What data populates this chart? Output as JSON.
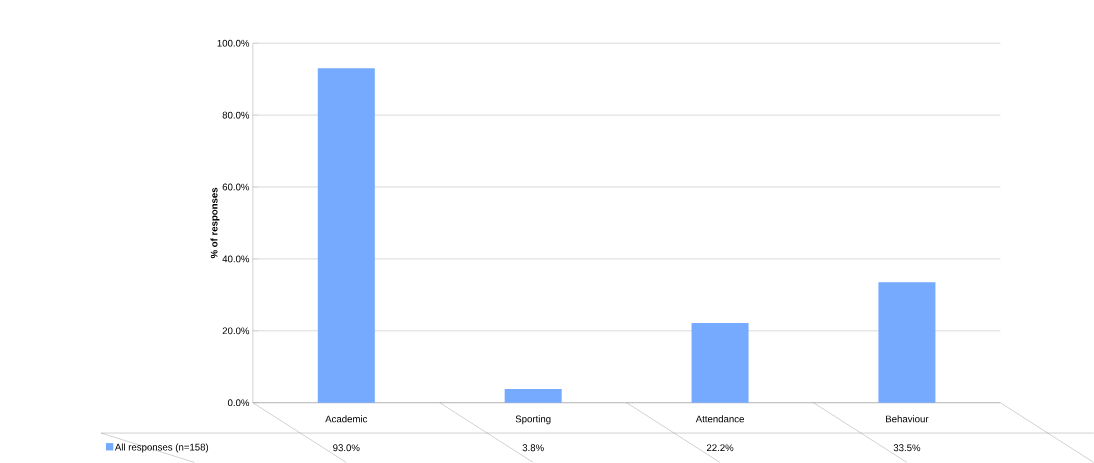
{
  "chart_data": {
    "type": "bar",
    "ylabel": "% of responses",
    "categories": [
      "Academic",
      "Sporting",
      "Attendance",
      "Behaviour"
    ],
    "series": [
      {
        "name": "All responses (n=158)",
        "color": "#75aaff",
        "values": [
          93.0,
          3.8,
          22.2,
          33.5
        ],
        "value_labels": [
          "93.0%",
          "3.8%",
          "22.2%",
          "33.5%"
        ]
      }
    ],
    "ylim": [
      0,
      100
    ],
    "yticks": [
      {
        "value": 0,
        "label": "0.0%"
      },
      {
        "value": 20,
        "label": "20.0%"
      },
      {
        "value": 40,
        "label": "40.0%"
      },
      {
        "value": 60,
        "label": "60.0%"
      },
      {
        "value": 80,
        "label": "80.0%"
      },
      {
        "value": 100,
        "label": "100.0%"
      }
    ],
    "grid": "y",
    "legend": "bottom left"
  }
}
